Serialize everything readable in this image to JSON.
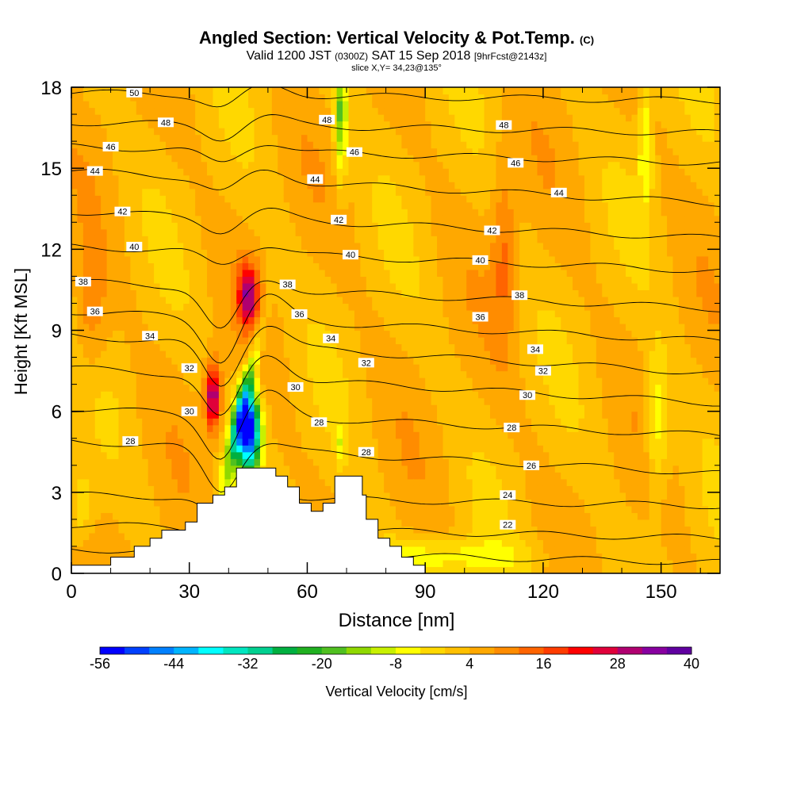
{
  "title": {
    "main": "Angled Section: Vertical Velocity & Pot.Temp.",
    "copyright": "(C)",
    "valid_prefix": "Valid 1200 JST",
    "valid_utc": "(0300Z)",
    "valid_date": "SAT 15 Sep 2018",
    "forecast": "[9hrFcst@2143z]",
    "slice": "slice X,Y= 34,23@135°"
  },
  "chart_data": {
    "type": "heatmap",
    "xlabel": "Distance [nm]",
    "ylabel": "Height [Kft MSL]",
    "xlim": [
      0,
      165
    ],
    "ylim": [
      0,
      18
    ],
    "x_ticks": [
      "0",
      "30",
      "60",
      "90",
      "120",
      "150"
    ],
    "y_ticks": [
      "0",
      "3",
      "6",
      "9",
      "12",
      "15",
      "18"
    ],
    "x_tick_values": [
      0,
      30,
      60,
      90,
      120,
      150
    ],
    "y_tick_values": [
      0,
      3,
      6,
      9,
      12,
      15,
      18
    ],
    "terrain": [
      [
        0,
        0.3
      ],
      [
        10,
        0.3
      ],
      [
        10,
        0.6
      ],
      [
        16,
        0.6
      ],
      [
        16,
        1.0
      ],
      [
        20,
        1.0
      ],
      [
        20,
        1.3
      ],
      [
        23,
        1.3
      ],
      [
        23,
        1.6
      ],
      [
        29,
        1.6
      ],
      [
        29,
        1.9
      ],
      [
        32,
        1.9
      ],
      [
        32,
        2.6
      ],
      [
        36,
        2.6
      ],
      [
        36,
        2.9
      ],
      [
        39,
        2.9
      ],
      [
        39,
        3.2
      ],
      [
        42,
        3.2
      ],
      [
        42,
        3.9
      ],
      [
        52,
        3.9
      ],
      [
        52,
        3.6
      ],
      [
        55,
        3.6
      ],
      [
        55,
        3.2
      ],
      [
        58,
        3.2
      ],
      [
        58,
        2.6
      ],
      [
        61,
        2.6
      ],
      [
        61,
        2.3
      ],
      [
        64,
        2.3
      ],
      [
        64,
        2.6
      ],
      [
        67,
        2.6
      ],
      [
        67,
        3.6
      ],
      [
        74,
        3.6
      ],
      [
        74,
        2.9
      ],
      [
        75,
        2.9
      ],
      [
        75,
        2.0
      ],
      [
        78,
        2.0
      ],
      [
        78,
        1.3
      ],
      [
        81,
        1.3
      ],
      [
        81,
        1.0
      ],
      [
        84,
        1.0
      ],
      [
        84,
        0.6
      ],
      [
        87,
        0.6
      ],
      [
        87,
        0.3
      ],
      [
        90,
        0.3
      ],
      [
        90,
        0.0
      ]
    ],
    "colorbar": {
      "label": "Vertical Velocity [cm/s]",
      "min": -56,
      "max": 40,
      "step": 4,
      "tick_labels": [
        "-56",
        "-44",
        "-32",
        "-20",
        "-8",
        "4",
        "16",
        "28",
        "40"
      ],
      "tick_values": [
        -56,
        -44,
        -32,
        -20,
        -8,
        4,
        16,
        28,
        40
      ],
      "colors": [
        "#0000ff",
        "#0040ff",
        "#0080ff",
        "#00b4ff",
        "#00ffff",
        "#00e6c0",
        "#00d090",
        "#00b040",
        "#20b020",
        "#50c020",
        "#90d800",
        "#c8f000",
        "#ffff00",
        "#ffd800",
        "#ffc000",
        "#ffa800",
        "#ff8c00",
        "#ff6400",
        "#ff3c00",
        "#ff0000",
        "#e0003a",
        "#b00070",
        "#8800a0",
        "#6000a0"
      ]
    },
    "theta_contours": [
      {
        "level": 22,
        "y_left": 0.9,
        "y_right": 0.4,
        "labels": [
          [
            111,
            1.8
          ]
        ]
      },
      {
        "level": 24,
        "y_left": 1.8,
        "y_right": 1.3,
        "labels": [
          [
            111,
            2.9
          ]
        ]
      },
      {
        "level": 26,
        "y_left": 2.9,
        "y_right": 2.5,
        "labels": [
          [
            117,
            4.0
          ]
        ]
      },
      {
        "level": 28,
        "y_left": 4.9,
        "y_right": 3.7,
        "labels": [
          [
            15,
            4.9
          ],
          [
            63,
            5.6
          ],
          [
            75,
            4.5
          ],
          [
            112,
            5.4
          ]
        ]
      },
      {
        "level": 30,
        "y_left": 6.1,
        "y_right": 5.1,
        "labels": [
          [
            30,
            6.0
          ],
          [
            57,
            6.9
          ],
          [
            116,
            6.6
          ]
        ]
      },
      {
        "level": 32,
        "y_left": 7.6,
        "y_right": 6.3,
        "labels": [
          [
            30,
            7.6
          ],
          [
            75,
            7.8
          ],
          [
            120,
            7.5
          ]
        ]
      },
      {
        "level": 34,
        "y_left": 8.8,
        "y_right": 7.4,
        "labels": [
          [
            20,
            8.8
          ],
          [
            66,
            8.7
          ],
          [
            118,
            8.3
          ]
        ]
      },
      {
        "level": 36,
        "y_left": 9.7,
        "y_right": 8.6,
        "labels": [
          [
            6,
            9.7
          ],
          [
            58,
            9.6
          ],
          [
            104,
            9.5
          ]
        ]
      },
      {
        "level": 38,
        "y_left": 10.8,
        "y_right": 9.8,
        "labels": [
          [
            3,
            10.8
          ],
          [
            55,
            10.7
          ],
          [
            114,
            10.3
          ]
        ]
      },
      {
        "level": 40,
        "y_left": 12.1,
        "y_right": 11.2,
        "labels": [
          [
            16,
            12.1
          ],
          [
            71,
            11.8
          ],
          [
            104,
            11.6
          ]
        ]
      },
      {
        "level": 42,
        "y_left": 13.4,
        "y_right": 12.4,
        "labels": [
          [
            13,
            13.4
          ],
          [
            68,
            13.1
          ],
          [
            107,
            12.7
          ]
        ]
      },
      {
        "level": 44,
        "y_left": 14.9,
        "y_right": 13.7,
        "labels": [
          [
            6,
            14.9
          ],
          [
            62,
            14.6
          ],
          [
            124,
            14.1
          ]
        ]
      },
      {
        "level": 46,
        "y_left": 15.8,
        "y_right": 15.2,
        "labels": [
          [
            10,
            15.8
          ],
          [
            72,
            15.6
          ],
          [
            113,
            15.2
          ]
        ]
      },
      {
        "level": 48,
        "y_left": 16.7,
        "y_right": 16.3,
        "labels": [
          [
            24,
            16.7
          ],
          [
            65,
            16.8
          ],
          [
            110,
            16.6
          ]
        ]
      },
      {
        "level": 50,
        "y_left": 17.8,
        "y_right": 17.5,
        "labels": [
          [
            16,
            17.8
          ]
        ]
      }
    ]
  }
}
